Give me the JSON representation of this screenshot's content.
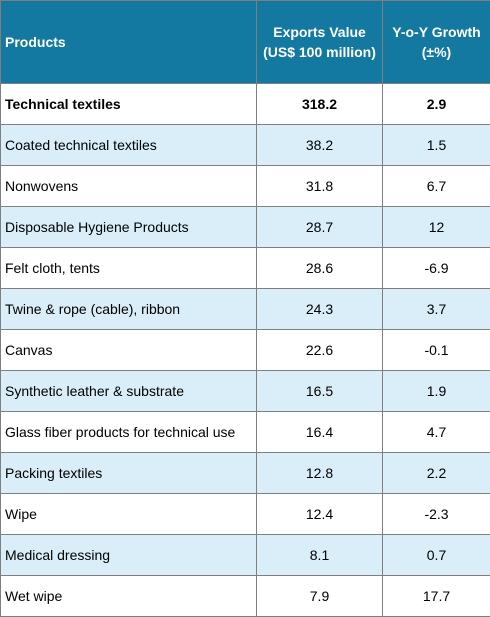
{
  "header": {
    "products": "Products",
    "exports_value": "Exports Value (US$ 100 million)",
    "growth": "Y-o-Y Growth (±%)"
  },
  "rows": [
    {
      "product": "Technical textiles",
      "value": "318.2",
      "growth": "2.9"
    },
    {
      "product": "Coated technical textiles",
      "value": "38.2",
      "growth": "1.5"
    },
    {
      "product": "Nonwovens",
      "value": "31.8",
      "growth": "6.7"
    },
    {
      "product": "Disposable Hygiene Products",
      "value": "28.7",
      "growth": "12"
    },
    {
      "product": "Felt cloth, tents",
      "value": "28.6",
      "growth": "-6.9"
    },
    {
      "product": "Twine & rope (cable), ribbon",
      "value": "24.3",
      "growth": "3.7"
    },
    {
      "product": "Canvas",
      "value": "22.6",
      "growth": "-0.1"
    },
    {
      "product": "Synthetic leather & substrate",
      "value": "16.5",
      "growth": "1.9"
    },
    {
      "product": "Glass fiber products for technical use",
      "value": "16.4",
      "growth": "4.7"
    },
    {
      "product": "Packing textiles",
      "value": "12.8",
      "growth": "2.2"
    },
    {
      "product": "Wipe",
      "value": "12.4",
      "growth": "-2.3"
    },
    {
      "product": "Medical dressing",
      "value": "8.1",
      "growth": "0.7"
    },
    {
      "product": "Wet wipe",
      "value": "7.9",
      "growth": "17.7"
    }
  ],
  "colors": {
    "header_bg": "#1479a0",
    "header_text": "#ffffff",
    "alt_row_bg": "#d9eef8",
    "border": "#7f7f7f"
  }
}
